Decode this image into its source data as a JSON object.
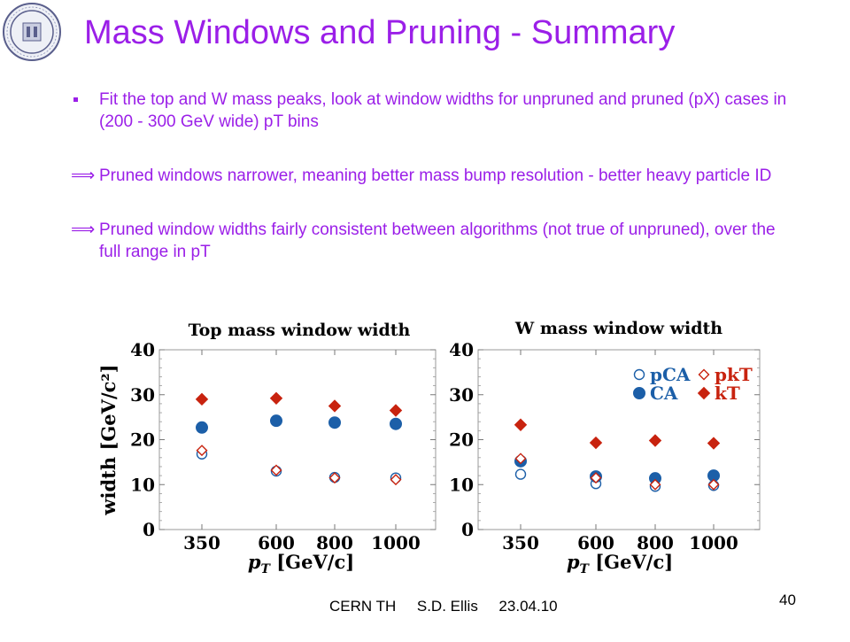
{
  "slide": {
    "title": "Mass Windows and Pruning - Summary",
    "bullets": [
      {
        "marker": "square",
        "text": "Fit the top and W mass peaks, look at window widths for unpruned and pruned (pX) cases in (200 - 300 GeV wide) pT bins"
      },
      {
        "marker": "implies",
        "symbol": "⟹",
        "text": "Pruned windows narrower, meaning better mass bump resolution - better heavy particle ID"
      },
      {
        "marker": "implies",
        "symbol": "⟹",
        "text": "Pruned window widths fairly consistent between algorithms (not true of unpruned), over the full range in pT"
      }
    ],
    "footer": "CERN TH     S.D. Ellis     23.04.10",
    "page_number": "40",
    "colors": {
      "title": "#9b1fe8",
      "ca": "#1c5fa8",
      "kt": "#c8230f"
    }
  },
  "chart_data": [
    {
      "type": "scatter",
      "title": "Top mass window width",
      "xlabel": "pT [GeV/c]",
      "ylabel": "width [GeV/c²]",
      "ylim": [
        0,
        40
      ],
      "yticks": [
        0,
        10,
        20,
        30,
        40
      ],
      "categories": [
        "350",
        "600",
        "800",
        "1000"
      ],
      "series": [
        {
          "key": "pCA",
          "marker": "open-circle",
          "color": "#1c5fa8",
          "values": [
            16.8,
            13.0,
            11.6,
            11.5
          ]
        },
        {
          "key": "CA",
          "marker": "filled-circle",
          "color": "#1c5fa8",
          "values": [
            22.7,
            24.2,
            23.8,
            23.5
          ]
        },
        {
          "key": "pkT",
          "marker": "open-diamond",
          "color": "#c8230f",
          "values": [
            17.6,
            13.2,
            11.5,
            11.1
          ]
        },
        {
          "key": "kT",
          "marker": "filled-diamond",
          "color": "#c8230f",
          "values": [
            29.0,
            29.2,
            27.5,
            26.5
          ]
        }
      ]
    },
    {
      "type": "scatter",
      "title": "W mass window width",
      "xlabel": "pT [GeV/c]",
      "ylabel": "",
      "ylim": [
        0,
        40
      ],
      "yticks": [
        0,
        10,
        20,
        30,
        40
      ],
      "categories": [
        "350",
        "600",
        "800",
        "1000"
      ],
      "legend": {
        "position": "top-right",
        "labels": [
          "pCA",
          "CA",
          "pkT",
          "kT"
        ]
      },
      "series": [
        {
          "name": "pCA",
          "marker": "open-circle",
          "color": "#1c5fa8",
          "values": [
            12.3,
            10.2,
            9.6,
            9.8
          ]
        },
        {
          "name": "CA",
          "marker": "filled-circle",
          "color": "#1c5fa8",
          "values": [
            15.2,
            11.8,
            11.4,
            12.0
          ]
        },
        {
          "name": "pkT",
          "marker": "open-diamond",
          "color": "#c8230f",
          "values": [
            15.8,
            11.5,
            10.0,
            10.0
          ]
        },
        {
          "name": "kT",
          "marker": "filled-diamond",
          "color": "#c8230f",
          "values": [
            23.3,
            19.3,
            19.8,
            19.2
          ]
        }
      ]
    }
  ]
}
